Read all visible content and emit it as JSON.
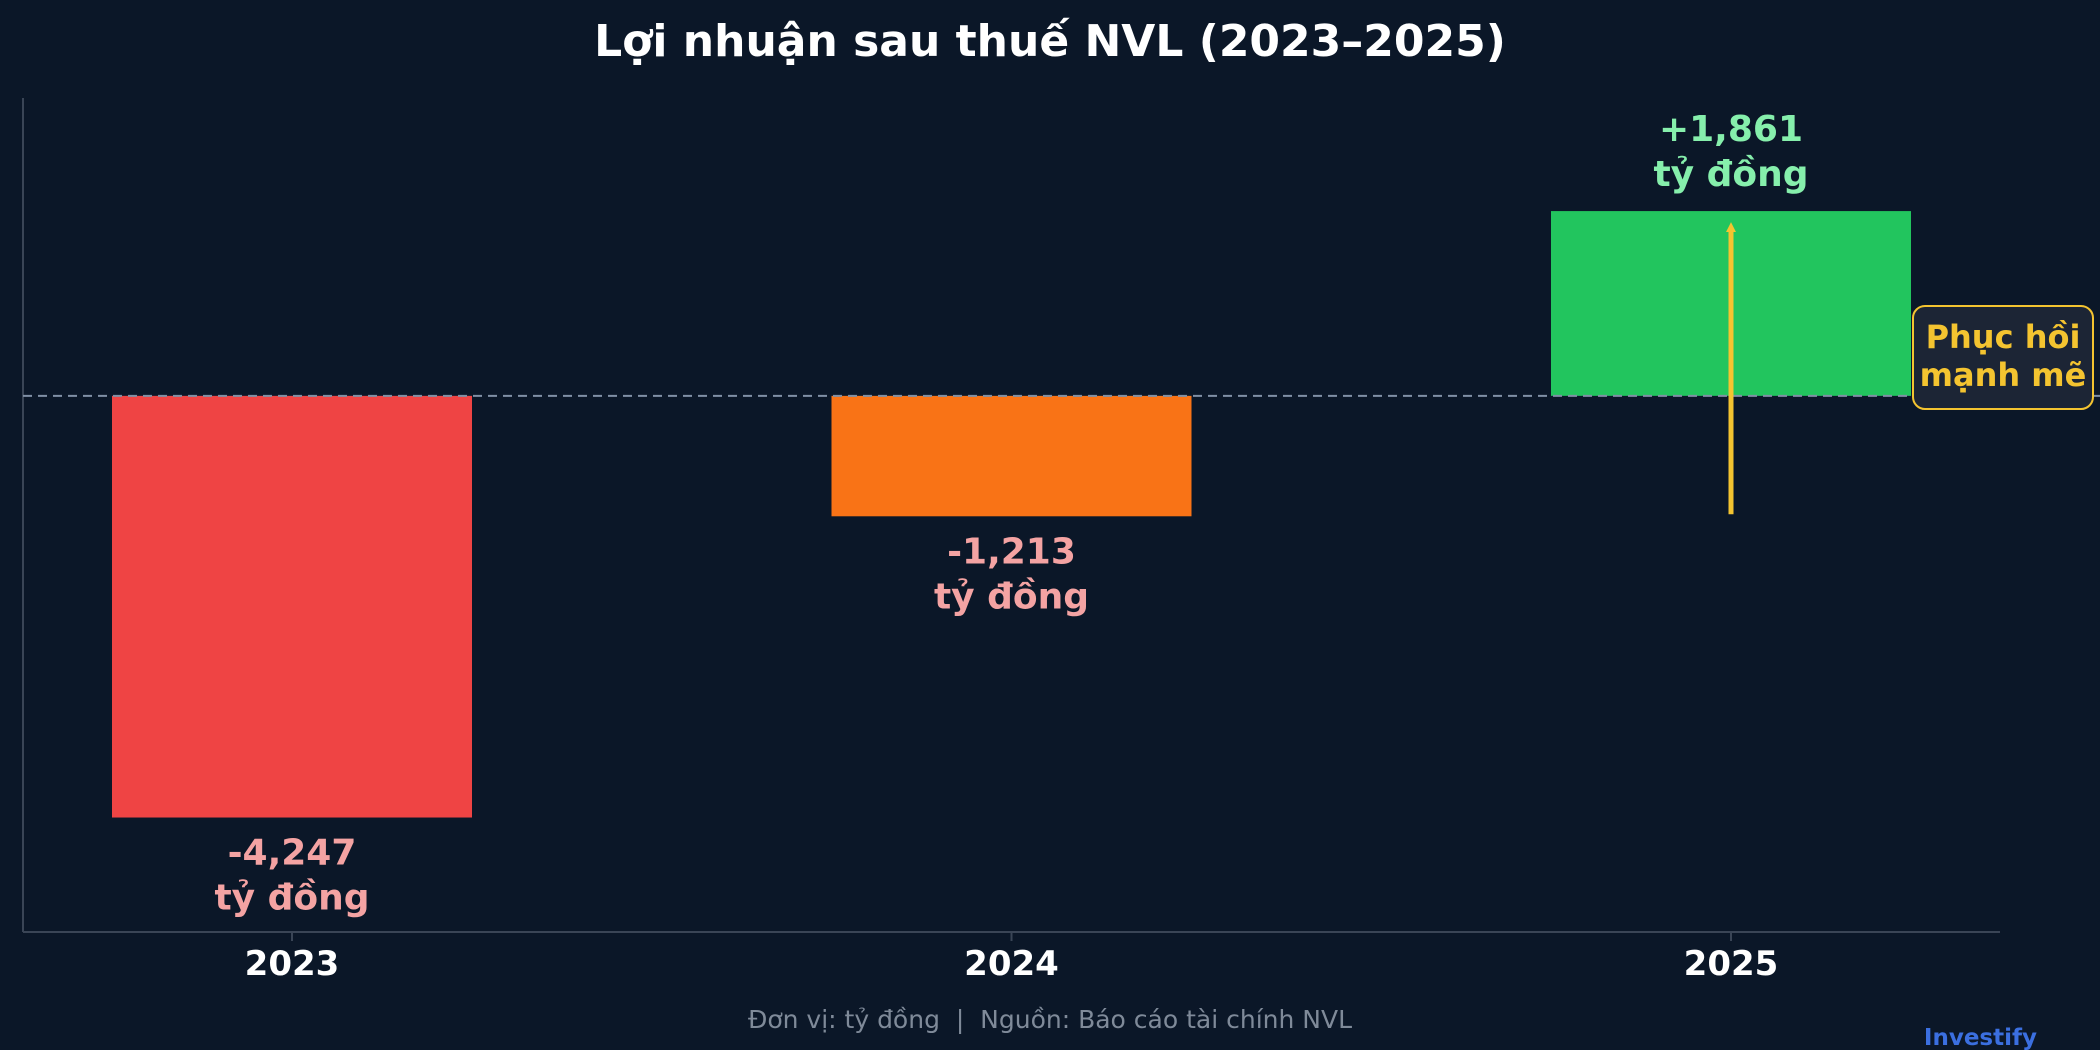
{
  "chart_data": {
    "type": "bar",
    "title": "Lợi nhuận sau thuế NVL (2023–2025)",
    "categories": [
      "2023",
      "2024",
      "2025"
    ],
    "values": [
      -4247,
      -1213,
      1861
    ],
    "data_labels": [
      [
        "-4,247",
        "tỷ đồng"
      ],
      [
        "-1,213",
        "tỷ đồng"
      ],
      [
        "+1,861",
        "tỷ đồng"
      ]
    ],
    "bar_colors": [
      "#ef4444",
      "#f97316",
      "#22c55e"
    ],
    "label_colors": [
      "#f4a3a3",
      "#f4a3a3",
      "#86efac"
    ],
    "ylim": [
      -5400,
      3000
    ],
    "zero_line": "dashed",
    "annotation": {
      "lines": [
        "Phục hồi",
        "mạnh mẽ"
      ],
      "arrow_from_value": -1213,
      "arrow_to_value": 1861,
      "category": "2025",
      "color": "#f4c430"
    },
    "footer": "Đơn vị: tỷ đồng  |  Nguồn: Báo cáo tài chính NVL",
    "brand": "Investify"
  }
}
